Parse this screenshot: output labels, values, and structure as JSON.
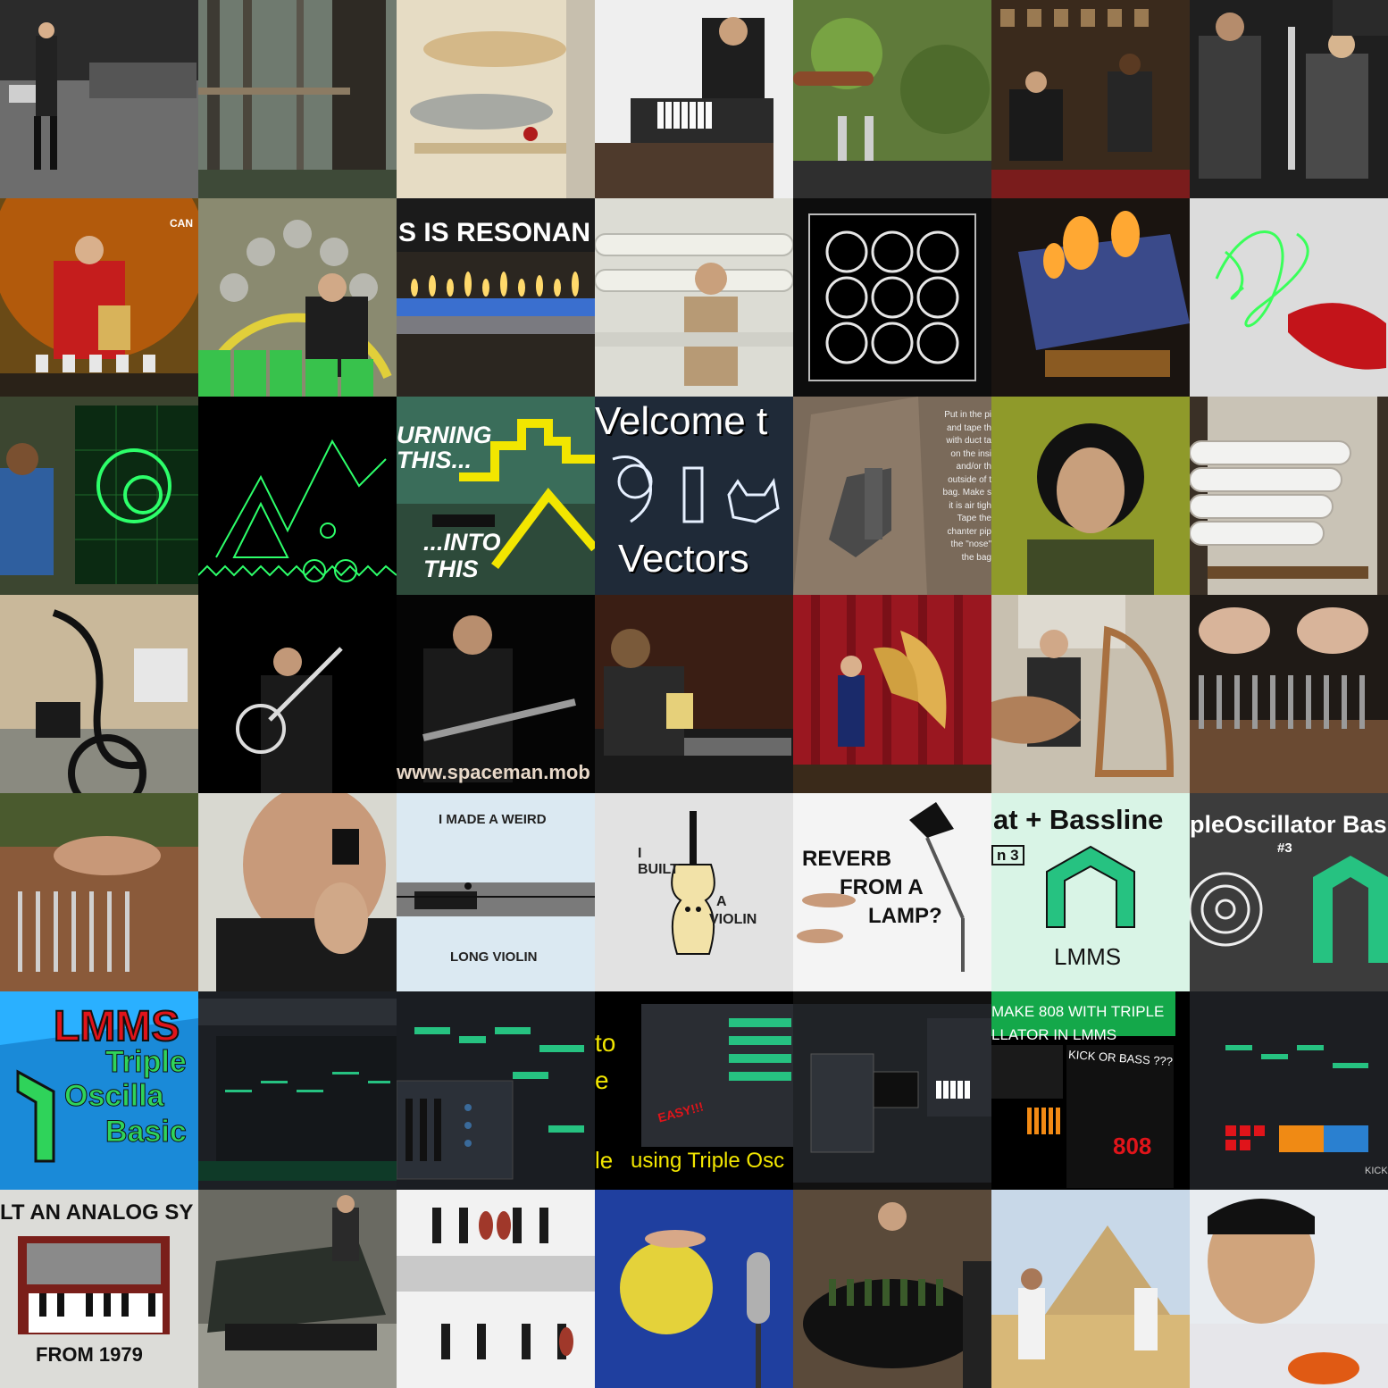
{
  "colors": {
    "background": "#000000",
    "lmms_green": "#26c281",
    "scope_green": "#2dff6a",
    "caption_yellow": "#f2e600"
  },
  "tiles": {
    "r3c1": {
      "caption": "S IS RESONAN"
    },
    "r4c1": {
      "caption_line1": "URNING",
      "caption_line2": "THIS...",
      "caption_line3": "...INTO",
      "caption_line4": "THIS"
    },
    "r4c2": {
      "caption_top": "Velcome t",
      "caption_bottom": "Vectors"
    },
    "r4c3": {
      "caption": [
        "Put in the pi",
        "and tape th",
        "with duct ta",
        "on the insi",
        "and/or th",
        "outside of t",
        "bag. Make s",
        "it is air tigh",
        "Tape the",
        "chanter pip",
        "the \"nose\"",
        "the bag"
      ]
    },
    "r5c2": {
      "caption": "www.spaceman.mob"
    },
    "r6c2": {
      "caption_top": "I MADE A WEIRD",
      "caption_bottom": "LONG VIOLIN"
    },
    "r6c3": {
      "caption_1": "I",
      "caption_2": "BUILT",
      "caption_3": "A",
      "caption_4": "VIOLIN"
    },
    "r6c4": {
      "caption_1": "REVERB",
      "caption_2": "FROM A",
      "caption_3": "LAMP?"
    },
    "r6c5": {
      "caption_top": "at + Bassline",
      "badge": "n 3",
      "logo_text": "LMMS"
    },
    "r6c6": {
      "caption_top": "pleOscillator Bas",
      "caption_sub": "#3"
    },
    "r7c0": {
      "caption_1": "LMMS",
      "caption_2": "Triple",
      "caption_3": "Oscilla",
      "caption_4": "Basic"
    },
    "r7c3": {
      "caption_1": "to",
      "caption_2": "e",
      "caption_3": "le",
      "caption_4": "using Triple Osc",
      "badge": "EASY!!!"
    },
    "r7c5": {
      "caption_1": "MAKE 808 WITH TRIPLE",
      "caption_2": "LLATOR IN LMMS",
      "caption_3": "KICK OR BASS ???",
      "display": "808"
    },
    "r7c6": {
      "label": "KICK"
    },
    "r8c0": {
      "caption_top": "LT AN ANALOG SY",
      "caption_bottom": "FROM 1979"
    },
    "r2c0": {
      "label": "CAN"
    }
  }
}
